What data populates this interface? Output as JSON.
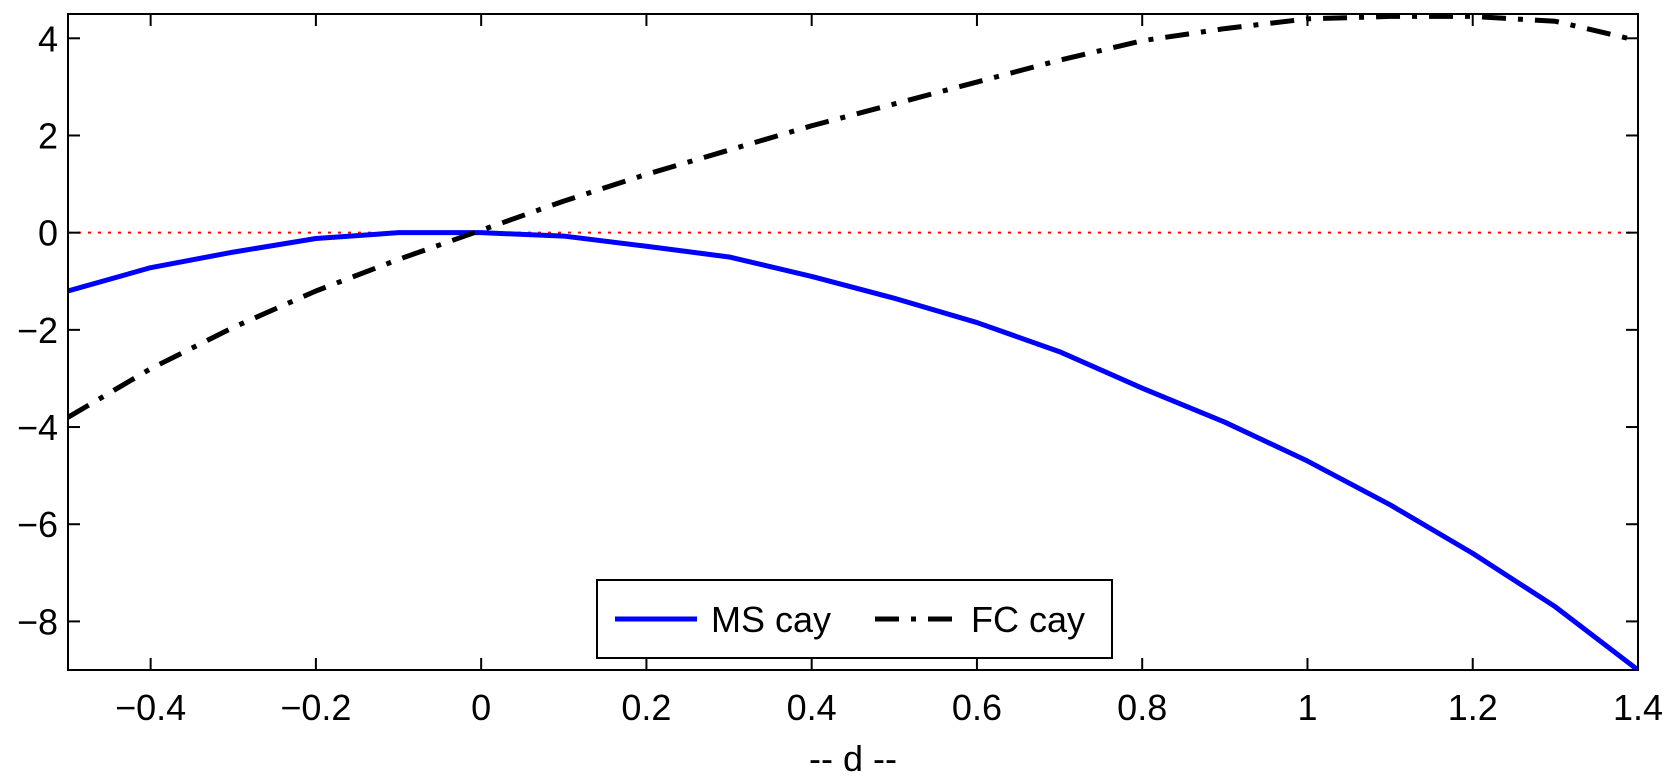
{
  "chart_data": {
    "type": "line",
    "xlabel": "-- d --",
    "ylabel": "",
    "title": "",
    "xlim": [
      -0.5,
      1.4
    ],
    "ylim": [
      -9,
      4.5
    ],
    "xticks": [
      -0.4,
      -0.2,
      0,
      0.2,
      0.4,
      0.6,
      0.8,
      1,
      1.2,
      1.4
    ],
    "xtick_labels": [
      "−0.4",
      "−0.2",
      "0",
      "0.2",
      "0.4",
      "0.6",
      "0.8",
      "1",
      "1.2",
      "1.4"
    ],
    "yticks": [
      4,
      2,
      0,
      -2,
      -4,
      -6,
      -8
    ],
    "ytick_labels": [
      "4",
      "2",
      "0",
      "−2",
      "−4",
      "−6",
      "−8"
    ],
    "grid": false,
    "legend_position": "bottom-center",
    "reference_line": {
      "y": 0,
      "color": "#ff0000",
      "style": "dotted"
    },
    "series": [
      {
        "name": "MS cay",
        "color": "#0000ff",
        "style": "solid",
        "x": [
          -0.5,
          -0.4,
          -0.3,
          -0.2,
          -0.1,
          0,
          0.1,
          0.2,
          0.3,
          0.4,
          0.5,
          0.6,
          0.7,
          0.8,
          0.9,
          1.0,
          1.1,
          1.2,
          1.3,
          1.4
        ],
        "y": [
          -1.2,
          -0.72,
          -0.4,
          -0.12,
          0,
          0,
          -0.07,
          -0.28,
          -0.5,
          -0.9,
          -1.35,
          -1.85,
          -2.45,
          -3.2,
          -3.9,
          -4.7,
          -5.6,
          -6.6,
          -7.7,
          -9.0
        ]
      },
      {
        "name": "FC cay",
        "color": "#000000",
        "style": "dashdot",
        "x": [
          -0.5,
          -0.4,
          -0.3,
          -0.2,
          -0.1,
          0,
          0.1,
          0.2,
          0.3,
          0.4,
          0.5,
          0.6,
          0.7,
          0.8,
          0.9,
          1.0,
          1.1,
          1.2,
          1.3,
          1.4
        ],
        "y": [
          -3.8,
          -2.8,
          -1.95,
          -1.2,
          -0.55,
          0.05,
          0.65,
          1.2,
          1.7,
          2.2,
          2.65,
          3.1,
          3.55,
          3.95,
          4.2,
          4.4,
          4.45,
          4.45,
          4.35,
          3.95
        ]
      }
    ]
  }
}
